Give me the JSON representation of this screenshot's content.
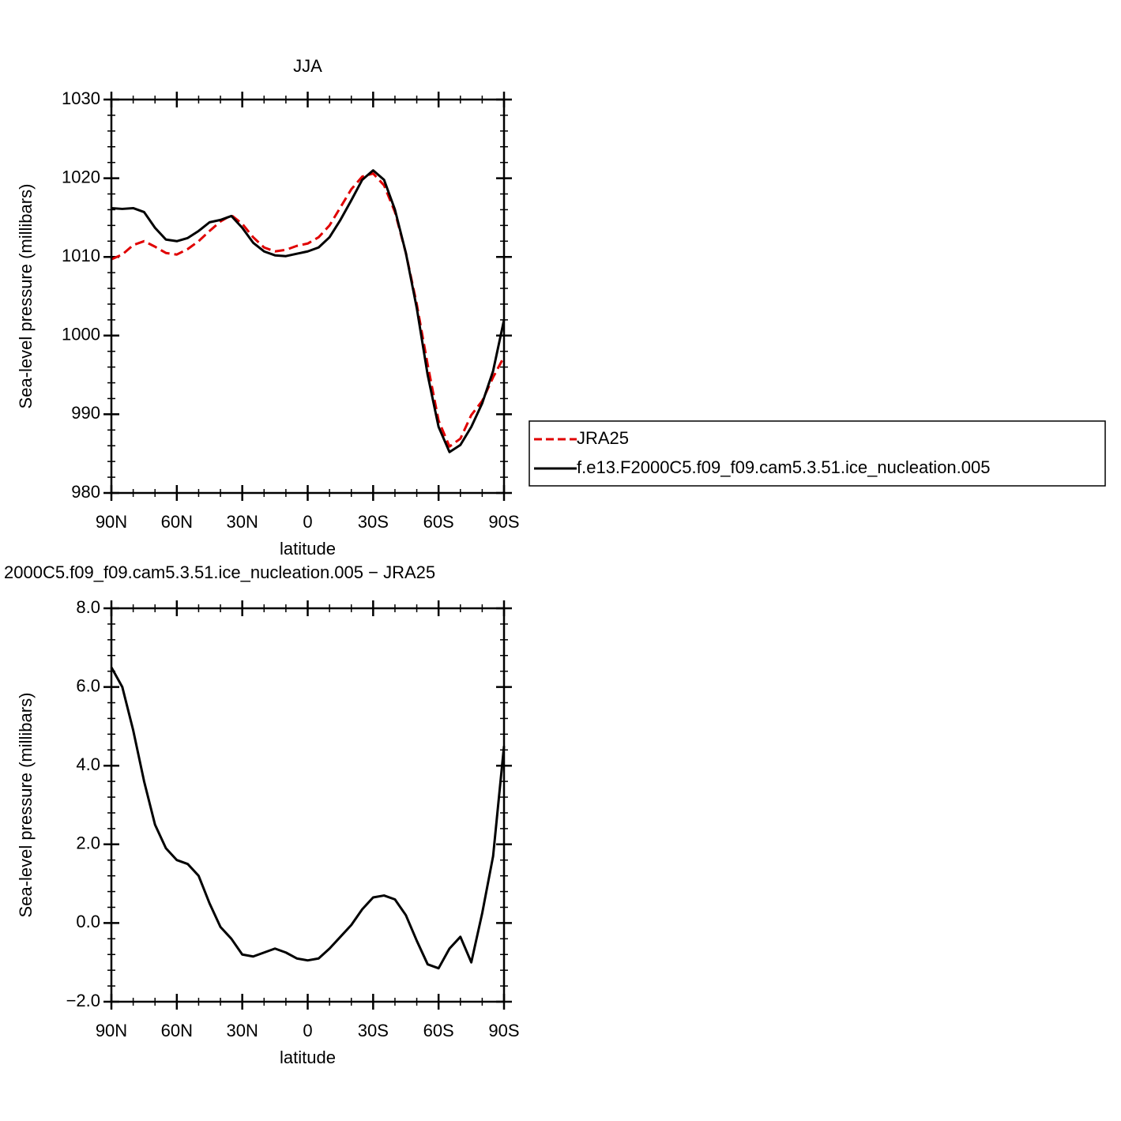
{
  "chart_data": [
    {
      "type": "line",
      "title": "JJA",
      "x_label": "latitude",
      "y_label": "Sea-level pressure (millibars)",
      "x": [
        90,
        85,
        80,
        75,
        70,
        65,
        60,
        55,
        50,
        45,
        40,
        35,
        30,
        25,
        20,
        15,
        10,
        5,
        0,
        -5,
        -10,
        -15,
        -20,
        -25,
        -30,
        -35,
        -40,
        -45,
        -50,
        -55,
        -60,
        -65,
        -70,
        -75,
        -80,
        -85,
        -90
      ],
      "xlim": [
        90,
        -90
      ],
      "xticks": [
        {
          "value": 90,
          "label": "90N"
        },
        {
          "value": 60,
          "label": "60N"
        },
        {
          "value": 30,
          "label": "30N"
        },
        0,
        {
          "value": -30,
          "label": "30S"
        },
        {
          "value": -60,
          "label": "60S"
        },
        {
          "value": -90,
          "label": "90S"
        }
      ],
      "ylim": [
        980,
        1030
      ],
      "yticks": [
        980,
        990,
        1000,
        1010,
        1020,
        1030
      ],
      "legend": "right",
      "series": [
        {
          "name": "JRA25",
          "color": "#e00000",
          "dashed": true,
          "values": [
            1009.7,
            1010.3,
            1011.5,
            1012.0,
            1011.3,
            1010.5,
            1010.3,
            1011.0,
            1012.0,
            1013.3,
            1014.5,
            1015.3,
            1014.2,
            1012.5,
            1011.2,
            1010.7,
            1010.9,
            1011.4,
            1011.7,
            1012.5,
            1014.0,
            1016.3,
            1018.6,
            1020.2,
            1020.6,
            1019.1,
            1015.7,
            1010.5,
            1004.0,
            996.3,
            989.2,
            985.9,
            986.9,
            989.9,
            991.7,
            994.7,
            997.3
          ]
        },
        {
          "name": "f.e13.F2000C5.f09_f09.cam5.3.51.ice_nucleation.005",
          "color": "#000000",
          "dashed": false,
          "values": [
            1016.2,
            1016.1,
            1016.2,
            1015.7,
            1013.7,
            1012.2,
            1012.0,
            1012.4,
            1013.3,
            1014.4,
            1014.7,
            1015.2,
            1013.7,
            1011.8,
            1010.7,
            1010.2,
            1010.1,
            1010.4,
            1010.7,
            1011.2,
            1012.5,
            1014.7,
            1017.2,
            1019.8,
            1021.0,
            1019.8,
            1016.0,
            1010.5,
            1003.5,
            995.0,
            988.4,
            985.2,
            986.1,
            988.4,
            991.4,
            995.5,
            1002.0
          ]
        }
      ]
    },
    {
      "type": "line",
      "title": "2000C5.f09_f09.cam5.3.51.ice_nucleation.005 − JRA25",
      "x_label": "latitude",
      "y_label": "Sea-level pressure (millibars)",
      "x": [
        90,
        85,
        80,
        75,
        70,
        65,
        60,
        55,
        50,
        45,
        40,
        35,
        30,
        25,
        20,
        15,
        10,
        5,
        0,
        -5,
        -10,
        -15,
        -20,
        -25,
        -30,
        -35,
        -40,
        -45,
        -50,
        -55,
        -60,
        -65,
        -70,
        -75,
        -80,
        -85,
        -90
      ],
      "xlim": [
        90,
        -90
      ],
      "xticks": [
        {
          "value": 90,
          "label": "90N"
        },
        {
          "value": 60,
          "label": "60N"
        },
        {
          "value": 30,
          "label": "30N"
        },
        0,
        {
          "value": -30,
          "label": "30S"
        },
        {
          "value": -60,
          "label": "60S"
        },
        {
          "value": -90,
          "label": "90S"
        }
      ],
      "ylim": [
        -2,
        8
      ],
      "yticks": [
        {
          "value": -2,
          "label": "−2.0"
        },
        {
          "value": 0,
          "label": "0.0"
        },
        {
          "value": 2,
          "label": "2.0"
        },
        {
          "value": 4,
          "label": "4.0"
        },
        {
          "value": 6,
          "label": "6.0"
        },
        {
          "value": 8,
          "label": "8.0"
        }
      ],
      "color": "#000000",
      "values": [
        6.5,
        6.0,
        4.9,
        3.6,
        2.5,
        1.9,
        1.6,
        1.5,
        1.2,
        0.5,
        -0.1,
        -0.4,
        -0.8,
        -0.85,
        -0.75,
        -0.65,
        -0.75,
        -0.9,
        -0.95,
        -0.9,
        -0.65,
        -0.35,
        -0.05,
        0.35,
        0.65,
        0.7,
        0.6,
        0.2,
        -0.45,
        -1.05,
        -1.15,
        -0.65,
        -0.35,
        -1.0,
        0.25,
        1.7,
        4.5
      ]
    }
  ]
}
